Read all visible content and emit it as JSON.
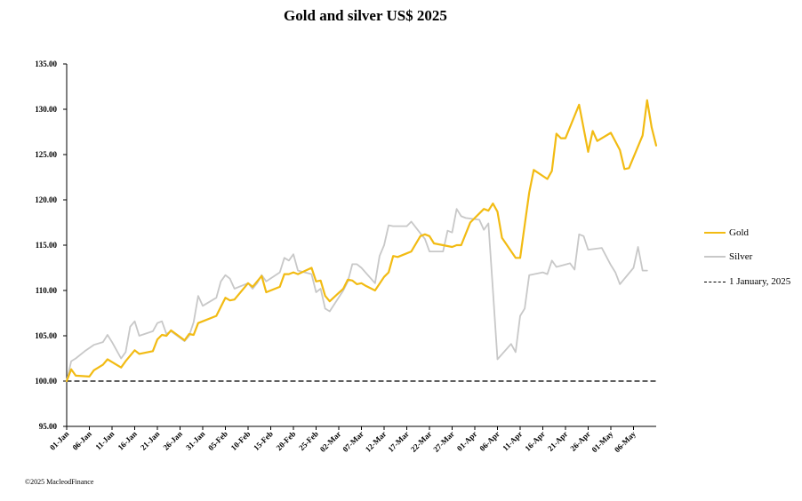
{
  "chart_data": {
    "type": "line",
    "title": "Gold and silver  US$ 2025",
    "ylim": [
      95,
      135
    ],
    "yticks": [
      "95.00",
      "100.00",
      "105.00",
      "110.00",
      "115.00",
      "120.00",
      "125.00",
      "130.00",
      "135.00"
    ],
    "xlabels": [
      "01-Jan",
      "06-Jan",
      "11-Jan",
      "16-Jan",
      "21-Jan",
      "26-Jan",
      "31-Jan",
      "05-Feb",
      "10-Feb",
      "15-Feb",
      "20-Feb",
      "25-Feb",
      "02-Mar",
      "07-Mar",
      "12-Mar",
      "17-Mar",
      "22-Mar",
      "27-Mar",
      "01-Apr",
      "06-Apr",
      "11-Apr",
      "16-Apr",
      "21-Apr",
      "26-Apr",
      "01-May",
      "06-May"
    ],
    "x_range_days": [
      0,
      128
    ],
    "legend_position": "right",
    "grid": false,
    "series": [
      {
        "name": "Gold",
        "color": "#F2BB13",
        "points": [
          [
            0,
            100
          ],
          [
            1,
            101.3
          ],
          [
            2,
            100.6
          ],
          [
            5,
            100.5
          ],
          [
            6,
            101.2
          ],
          [
            8,
            101.8
          ],
          [
            9,
            102.4
          ],
          [
            12,
            101.5
          ],
          [
            13,
            102.2
          ],
          [
            15,
            103.4
          ],
          [
            16,
            103.0
          ],
          [
            19,
            103.3
          ],
          [
            20,
            104.6
          ],
          [
            21,
            105.1
          ],
          [
            22,
            105.0
          ],
          [
            23,
            105.6
          ],
          [
            26,
            104.5
          ],
          [
            27,
            105.2
          ],
          [
            28,
            105.1
          ],
          [
            29,
            106.4
          ],
          [
            30,
            106.6
          ],
          [
            33,
            107.2
          ],
          [
            34,
            108.2
          ],
          [
            35,
            109.2
          ],
          [
            36,
            108.9
          ],
          [
            37,
            109.0
          ],
          [
            38,
            109.6
          ],
          [
            40,
            110.8
          ],
          [
            41,
            110.4
          ],
          [
            42,
            111.0
          ],
          [
            43,
            111.6
          ],
          [
            44,
            109.8
          ],
          [
            47,
            110.4
          ],
          [
            48,
            111.8
          ],
          [
            49,
            111.8
          ],
          [
            50,
            112.0
          ],
          [
            51,
            111.8
          ],
          [
            54,
            112.5
          ],
          [
            55,
            111.0
          ],
          [
            56,
            111.1
          ],
          [
            57,
            109.4
          ],
          [
            58,
            108.8
          ],
          [
            61,
            110.2
          ],
          [
            62,
            111.2
          ],
          [
            63,
            111.1
          ],
          [
            64,
            110.7
          ],
          [
            65,
            110.8
          ],
          [
            66,
            110.5
          ],
          [
            68,
            110.0
          ],
          [
            70,
            111.5
          ],
          [
            71,
            112.0
          ],
          [
            72,
            113.8
          ],
          [
            73,
            113.7
          ],
          [
            75,
            114.1
          ],
          [
            76,
            114.3
          ],
          [
            78,
            116.0
          ],
          [
            79,
            116.2
          ],
          [
            80,
            116.0
          ],
          [
            81,
            115.2
          ],
          [
            85,
            114.8
          ],
          [
            86,
            115.0
          ],
          [
            87,
            115.0
          ],
          [
            89,
            117.5
          ],
          [
            90,
            118.0
          ],
          [
            91,
            118.5
          ],
          [
            92,
            119.0
          ],
          [
            93,
            118.8
          ],
          [
            94,
            119.6
          ],
          [
            95,
            118.7
          ],
          [
            96,
            115.8
          ],
          [
            99,
            113.6
          ],
          [
            100,
            113.6
          ],
          [
            102,
            120.8
          ],
          [
            103,
            123.3
          ],
          [
            106,
            122.3
          ],
          [
            107,
            123.2
          ],
          [
            108,
            127.3
          ],
          [
            109,
            126.8
          ],
          [
            110,
            126.8
          ],
          [
            113,
            130.5
          ],
          [
            115,
            125.3
          ],
          [
            116,
            127.6
          ],
          [
            117,
            126.5
          ],
          [
            120,
            127.4
          ],
          [
            122,
            125.5
          ],
          [
            123,
            123.4
          ],
          [
            124,
            123.5
          ],
          [
            127,
            127.1
          ],
          [
            128,
            131.0
          ],
          [
            129,
            128.0
          ],
          [
            130,
            126.0
          ]
        ]
      },
      {
        "name": "Silver",
        "color": "#C8C8C8",
        "points": [
          [
            0,
            100
          ],
          [
            1,
            102.2
          ],
          [
            2,
            102.5
          ],
          [
            4,
            103.3
          ],
          [
            6,
            104.0
          ],
          [
            8,
            104.3
          ],
          [
            9,
            105.1
          ],
          [
            10,
            104.3
          ],
          [
            12,
            102.5
          ],
          [
            13,
            103.2
          ],
          [
            14,
            106.0
          ],
          [
            15,
            106.6
          ],
          [
            16,
            105.0
          ],
          [
            19,
            105.5
          ],
          [
            20,
            106.4
          ],
          [
            21,
            106.6
          ],
          [
            22,
            105.2
          ],
          [
            23,
            105.5
          ],
          [
            26,
            104.4
          ],
          [
            27,
            105.0
          ],
          [
            28,
            106.5
          ],
          [
            29,
            109.4
          ],
          [
            30,
            108.3
          ],
          [
            33,
            109.2
          ],
          [
            34,
            111.0
          ],
          [
            35,
            111.7
          ],
          [
            36,
            111.3
          ],
          [
            37,
            110.2
          ],
          [
            40,
            110.8
          ],
          [
            41,
            110.2
          ],
          [
            42,
            110.8
          ],
          [
            43,
            111.7
          ],
          [
            44,
            111.0
          ],
          [
            47,
            112.0
          ],
          [
            48,
            113.6
          ],
          [
            49,
            113.3
          ],
          [
            50,
            114.0
          ],
          [
            51,
            112.2
          ],
          [
            54,
            111.8
          ],
          [
            55,
            109.8
          ],
          [
            56,
            110.2
          ],
          [
            57,
            108.0
          ],
          [
            58,
            107.7
          ],
          [
            61,
            110.0
          ],
          [
            62,
            111.0
          ],
          [
            63,
            112.9
          ],
          [
            64,
            112.9
          ],
          [
            65,
            112.5
          ],
          [
            68,
            110.8
          ],
          [
            69,
            113.8
          ],
          [
            70,
            115.0
          ],
          [
            71,
            117.2
          ],
          [
            72,
            117.1
          ],
          [
            75,
            117.1
          ],
          [
            76,
            117.6
          ],
          [
            78,
            116.3
          ],
          [
            79,
            115.7
          ],
          [
            80,
            114.3
          ],
          [
            83,
            114.3
          ],
          [
            84,
            116.6
          ],
          [
            85,
            116.4
          ],
          [
            86,
            119.0
          ],
          [
            87,
            118.2
          ],
          [
            88,
            118.0
          ],
          [
            91,
            117.8
          ],
          [
            92,
            116.7
          ],
          [
            93,
            117.4
          ],
          [
            94,
            110.0
          ],
          [
            95,
            102.4
          ],
          [
            98,
            104.1
          ],
          [
            99,
            103.2
          ],
          [
            100,
            107.2
          ],
          [
            101,
            108.0
          ],
          [
            102,
            111.7
          ],
          [
            105,
            112.0
          ],
          [
            106,
            111.8
          ],
          [
            107,
            113.3
          ],
          [
            108,
            112.6
          ],
          [
            111,
            113.0
          ],
          [
            112,
            112.3
          ],
          [
            113,
            116.2
          ],
          [
            114,
            116.0
          ],
          [
            115,
            114.5
          ],
          [
            118,
            114.7
          ],
          [
            120,
            112.8
          ],
          [
            121,
            112.0
          ],
          [
            122,
            110.7
          ],
          [
            125,
            112.5
          ],
          [
            126,
            114.8
          ],
          [
            127,
            112.2
          ],
          [
            128,
            112.2
          ]
        ]
      },
      {
        "name": "1 January, 2025",
        "color": "#000000",
        "dashed": true,
        "points": [
          [
            0,
            100
          ],
          [
            130,
            100
          ]
        ]
      }
    ]
  },
  "legend": [
    {
      "label": "Gold",
      "color": "#F2BB13",
      "dashed": false
    },
    {
      "label": "Silver",
      "color": "#C8C8C8",
      "dashed": false
    },
    {
      "label": "1 January, 2025",
      "color": "#000000",
      "dashed": true
    }
  ],
  "footer": "©2025 MacleodFinance"
}
